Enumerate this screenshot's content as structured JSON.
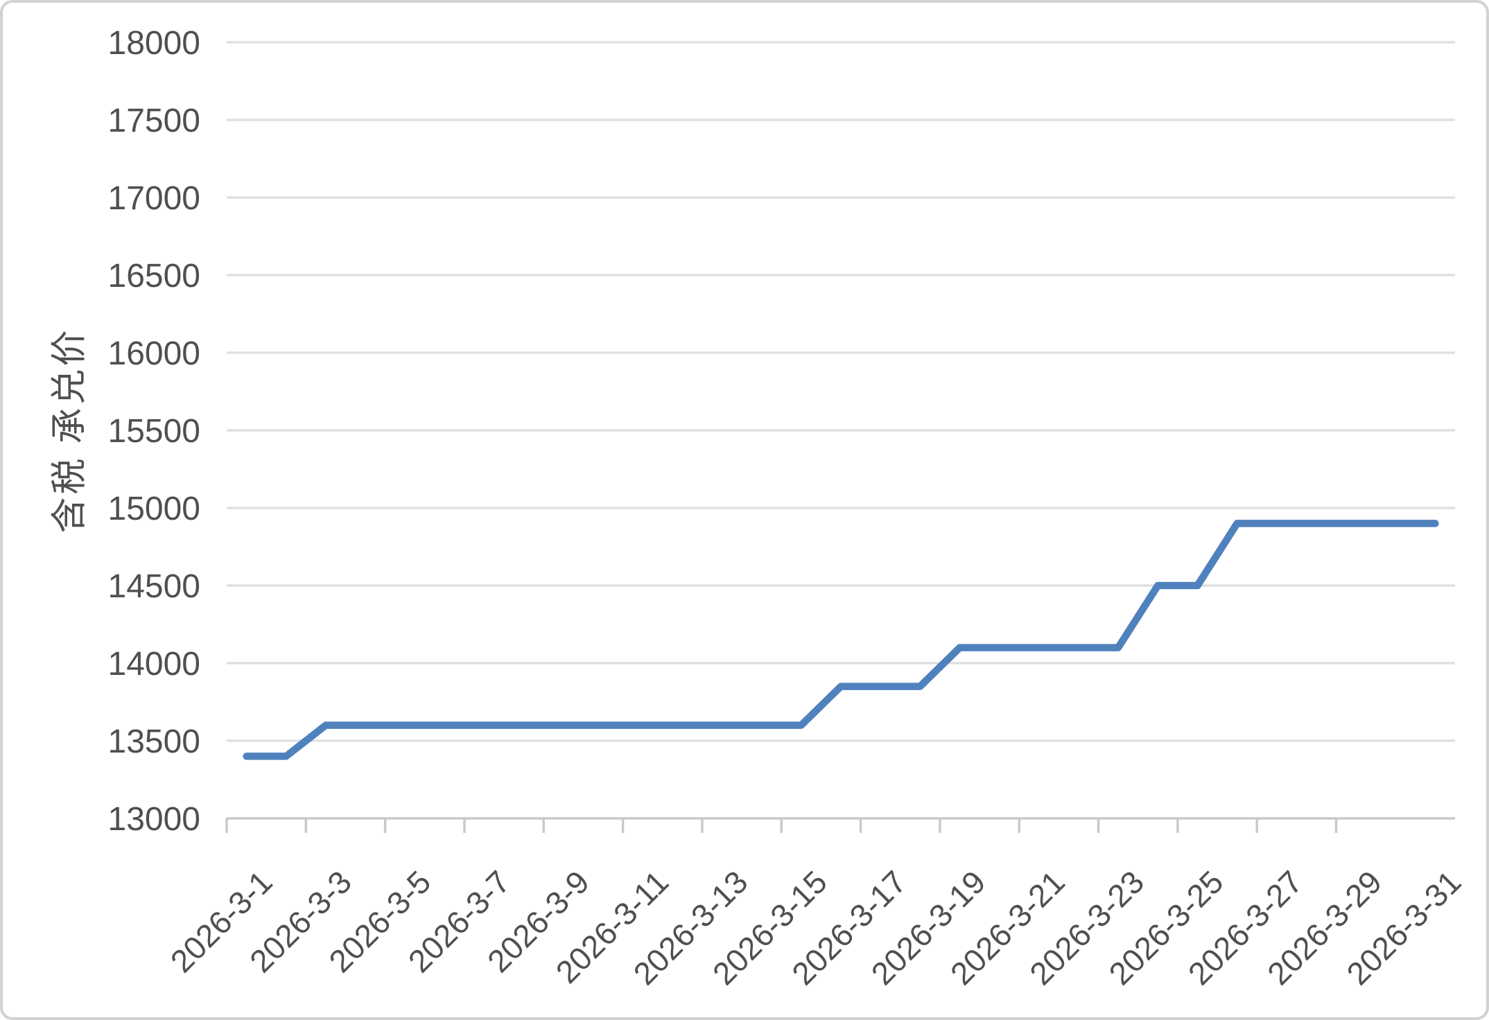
{
  "chart_data": {
    "type": "line",
    "title": "",
    "xlabel": "",
    "ylabel": "含税 承兑价",
    "x": [
      "2026-3-1",
      "2026-3-2",
      "2026-3-3",
      "2026-3-4",
      "2026-3-5",
      "2026-3-6",
      "2026-3-7",
      "2026-3-8",
      "2026-3-9",
      "2026-3-10",
      "2026-3-11",
      "2026-3-12",
      "2026-3-13",
      "2026-3-14",
      "2026-3-15",
      "2026-3-16",
      "2026-3-17",
      "2026-3-18",
      "2026-3-19",
      "2026-3-20",
      "2026-3-21",
      "2026-3-22",
      "2026-3-23",
      "2026-3-24",
      "2026-3-25",
      "2026-3-26",
      "2026-3-27",
      "2026-3-28",
      "2026-3-29",
      "2026-3-30",
      "2026-3-31"
    ],
    "values": [
      13400,
      13400,
      13600,
      13600,
      13600,
      13600,
      13600,
      13600,
      13600,
      13600,
      13600,
      13600,
      13600,
      13600,
      13600,
      13850,
      13850,
      13850,
      14100,
      14100,
      14100,
      14100,
      14100,
      14500,
      14500,
      14900,
      14900,
      14900,
      14900,
      14900,
      14900
    ],
    "x_tick_labels": [
      "2026-3-1",
      "2026-3-3",
      "2026-3-5",
      "2026-3-7",
      "2026-3-9",
      "2026-3-11",
      "2026-3-13",
      "2026-3-15",
      "2026-3-17",
      "2026-3-19",
      "2026-3-21",
      "2026-3-23",
      "2026-3-25",
      "2026-3-27",
      "2026-3-29",
      "2026-3-31"
    ],
    "x_tick_every": 2,
    "y_ticks": [
      13000,
      13500,
      14000,
      14500,
      15000,
      15500,
      16000,
      16500,
      17000,
      17500,
      18000
    ],
    "ylim": [
      13000,
      18000
    ],
    "y_tick_step": 500,
    "x_label_rotation": -45,
    "grid": "horizontal",
    "legend": "none",
    "colors": {
      "line": "#4F81BD",
      "gridline": "#e0e0e0",
      "axis": "#c9c9c9",
      "tick_text": "#4f4f4f",
      "frame_border": "#d2d2d2",
      "background": "#ffffff"
    }
  }
}
